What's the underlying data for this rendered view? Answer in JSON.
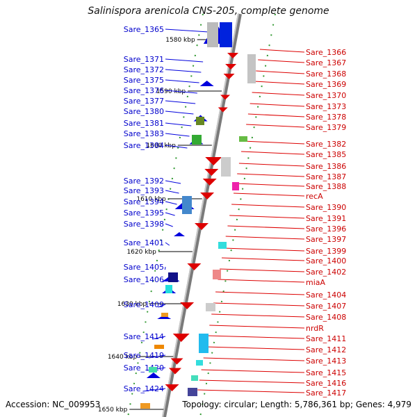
{
  "title": "Salinispora arenicola CNS-205, complete genome",
  "accession": "Accession: NC_009953",
  "topology": "Topology: circular; Length: 5,786,361 bp; Genes: 4,979",
  "colors": {
    "backbone": "#9a9a9a",
    "forward": "#0000dd",
    "reverse": "#dd0000",
    "tick": "#339933"
  },
  "kbp_labels": [
    "1580 kbp",
    "1590 kbp",
    "1600 kbp",
    "1610 kbp",
    "1620 kbp",
    "1630 kbp",
    "1640 kbp",
    "1650 kbp"
  ],
  "left_genes": [
    "Sare_1365",
    "Sare_1371",
    "Sare_1372",
    "Sare_1375",
    "Sare_1376",
    "Sare_1377",
    "Sare_1380",
    "Sare_1381",
    "Sare_1383",
    "Sare_1384",
    "Sare_1392",
    "Sare_1393",
    "Sare_1394",
    "Sare_1395",
    "Sare_1398",
    "Sare_1401",
    "Sare_1405",
    "Sare_1406",
    "Sare_1409",
    "Sare_1414",
    "Sare_1419",
    "Sare_1420",
    "Sare_1424"
  ],
  "right_genes": [
    "Sare_1366",
    "Sare_1367",
    "Sare_1368",
    "Sare_1369",
    "Sare_1370",
    "Sare_1373",
    "Sare_1378",
    "Sare_1379",
    "Sare_1382",
    "Sare_1385",
    "Sare_1386",
    "Sare_1387",
    "Sare_1388",
    "recA",
    "Sare_1390",
    "Sare_1391",
    "Sare_1396",
    "Sare_1397",
    "Sare_1399",
    "Sare_1400",
    "Sare_1402",
    "miaA",
    "Sare_1404",
    "Sare_1407",
    "Sare_1408",
    "nrdR",
    "Sare_1411",
    "Sare_1412",
    "Sare_1413",
    "Sare_1415",
    "Sare_1416",
    "Sare_1417"
  ]
}
